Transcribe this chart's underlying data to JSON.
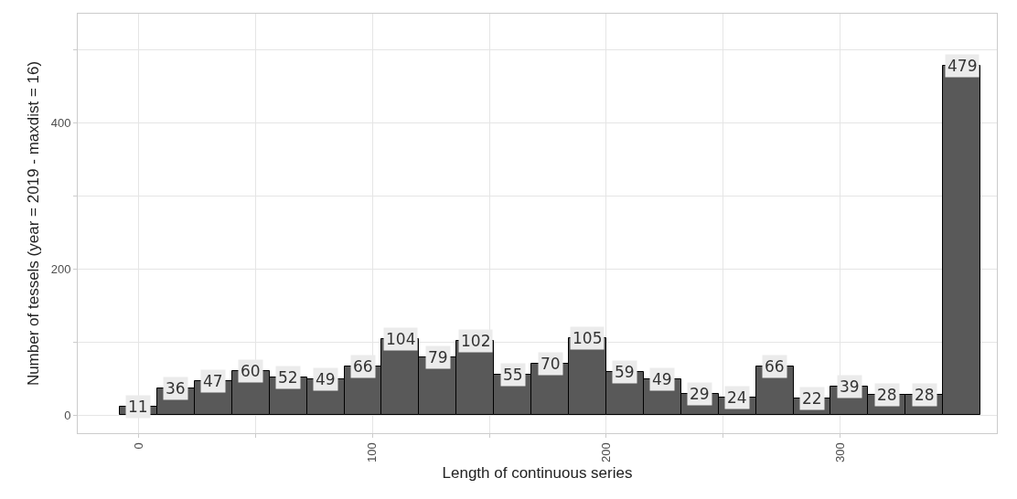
{
  "chart_data": {
    "type": "histogram",
    "xlabel": "Length of continuous series",
    "ylabel": "Number of tessels (year = 2019 - maxdist = 16)",
    "bins": [
      -8,
      8,
      24,
      40,
      56,
      72,
      88,
      104,
      120,
      136,
      152,
      168,
      184,
      200,
      216,
      232,
      248,
      264,
      280,
      296,
      312,
      328,
      344,
      360
    ],
    "values": [
      11,
      36,
      47,
      60,
      52,
      49,
      66,
      104,
      79,
      102,
      55,
      70,
      105,
      59,
      49,
      29,
      24,
      66,
      22,
      39,
      28,
      28,
      479
    ],
    "color": "#595959",
    "data_labels": true,
    "grid": true,
    "xlim": [
      -26,
      367
    ],
    "ylim": [
      -25,
      550
    ],
    "xticks": [
      0,
      {
        "value": 50,
        "label": null
      },
      100,
      {
        "value": 150,
        "label": null
      },
      200,
      {
        "value": 250,
        "label": null
      },
      300
    ],
    "yticks": [
      0,
      {
        "value": 100,
        "label": null
      },
      200,
      {
        "value": 300,
        "label": null
      },
      400,
      {
        "value": 500,
        "label": null
      }
    ]
  }
}
